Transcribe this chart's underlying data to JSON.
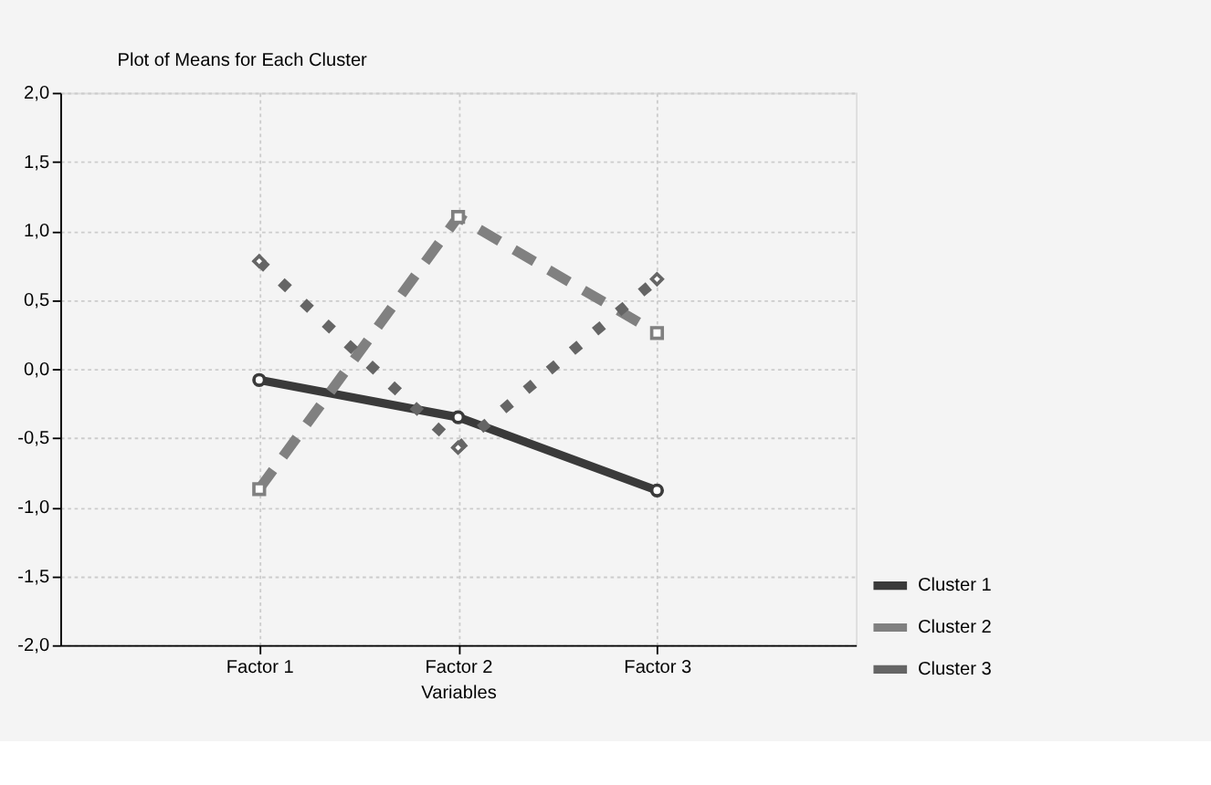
{
  "chart_data": {
    "type": "line",
    "title": "Plot of Means for Each Cluster",
    "xlabel": "Variables",
    "categories": [
      "Factor 1",
      "Factor 2",
      "Factor 3"
    ],
    "series": [
      {
        "name": "Cluster 1",
        "color": "#3a3a3a",
        "values": [
          -0.08,
          -0.35,
          -0.88
        ],
        "line_style": "solid",
        "marker": "circle"
      },
      {
        "name": "Cluster 2",
        "color": "#808080",
        "values": [
          -0.87,
          1.1,
          0.26
        ],
        "line_style": "dashed",
        "marker": "square"
      },
      {
        "name": "Cluster 3",
        "color": "#656565",
        "values": [
          0.78,
          -0.57,
          0.65
        ],
        "line_style": "dotted",
        "marker": "diamond"
      }
    ],
    "ylim": [
      -2,
      2
    ],
    "yticks": [
      {
        "value": -2,
        "label": "-2,0"
      },
      {
        "value": -1.5,
        "label": "-1,5"
      },
      {
        "value": -1,
        "label": "-1,0"
      },
      {
        "value": -0.5,
        "label": "-0,5"
      },
      {
        "value": 0,
        "label": "0,0"
      },
      {
        "value": 0.5,
        "label": "0,5"
      },
      {
        "value": 1,
        "label": "1,0"
      },
      {
        "value": 1.5,
        "label": "1,5"
      },
      {
        "value": 2,
        "label": "2,0"
      }
    ],
    "grid": true,
    "legend": "bottom right"
  }
}
